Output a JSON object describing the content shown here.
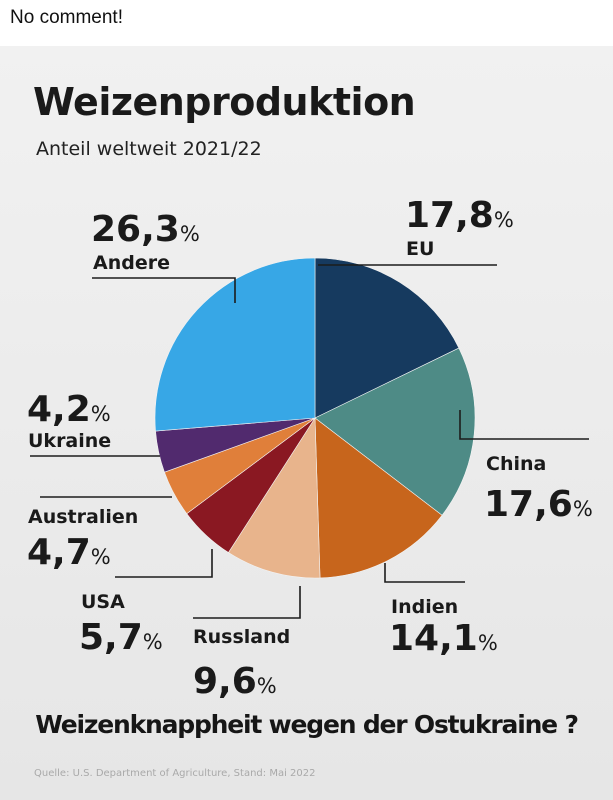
{
  "post": {
    "text": "No comment!"
  },
  "chart_data": {
    "type": "pie",
    "title": "Weizenproduktion",
    "subtitle": "Anteil weltweit 2021/22",
    "slices": [
      {
        "label": "EU",
        "value": 17.8,
        "value_text": "17,8",
        "color": "#163a5f"
      },
      {
        "label": "China",
        "value": 17.6,
        "value_text": "17,6",
        "color": "#4e8b86"
      },
      {
        "label": "Indien",
        "value": 14.1,
        "value_text": "14,1",
        "color": "#c7651c"
      },
      {
        "label": "Russland",
        "value": 9.6,
        "value_text": "9,6",
        "color": "#e8b48c"
      },
      {
        "label": "USA",
        "value": 5.7,
        "value_text": "5,7",
        "color": "#8a1822"
      },
      {
        "label": "Australien",
        "value": 4.7,
        "value_text": "4,7",
        "color": "#e07f3a"
      },
      {
        "label": "Ukraine",
        "value": 4.2,
        "value_text": "4,2",
        "color": "#512a6e"
      },
      {
        "label": "Andere",
        "value": 26.3,
        "value_text": "26,3",
        "color": "#37a7e6"
      }
    ],
    "unit": "%",
    "start_angle_deg": 0,
    "direction": "clockwise"
  },
  "headline": "Weizenknappheit wegen der Ostukraine ?",
  "source": "Quelle: U.S. Department of Agriculture, Stand: Mai 2022"
}
